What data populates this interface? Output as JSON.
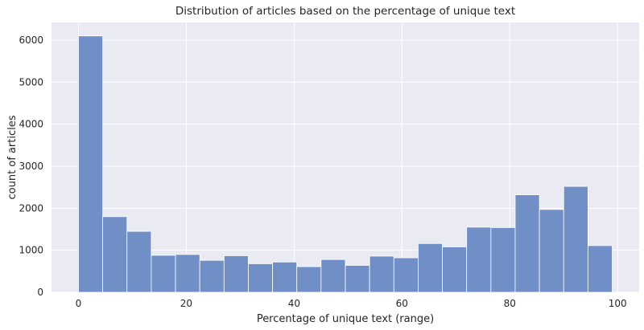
{
  "chart_data": {
    "type": "bar",
    "title": "Distribution of articles based on the percentage of unique text",
    "xlabel": "Percentage of unique text (range)",
    "ylabel": "count of articles",
    "xlim": [
      -5,
      104
    ],
    "ylim": [
      0,
      6420
    ],
    "xticks": [
      0,
      20,
      40,
      60,
      80,
      100
    ],
    "yticks": [
      0,
      1000,
      2000,
      3000,
      4000,
      5000,
      6000
    ],
    "bin_width": 4.5,
    "bin_start": 0,
    "values": [
      6100,
      1800,
      1450,
      880,
      900,
      760,
      870,
      680,
      720,
      610,
      780,
      640,
      860,
      820,
      1160,
      1080,
      1550,
      1540,
      2320,
      1970,
      2520,
      1110
    ],
    "grid": true,
    "colors": {
      "background": "#eaeaf2",
      "bar": "#6f8fc6",
      "grid": "#ffffff"
    }
  }
}
